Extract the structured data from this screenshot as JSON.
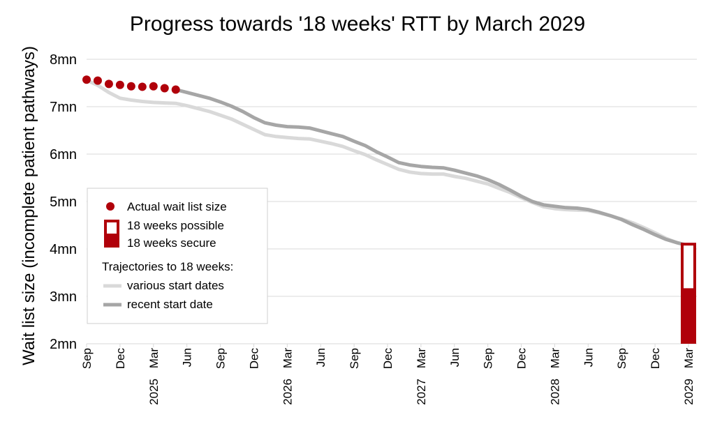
{
  "chart_data": {
    "type": "line",
    "title": "Progress towards '18 weeks' RTT by March 2029",
    "ylabel": "Wait list size (incomplete patient pathways)",
    "xlabel": "",
    "ylim": [
      2,
      8
    ],
    "yticks": [
      "2mn",
      "3mn",
      "4mn",
      "5mn",
      "6mn",
      "7mn",
      "8mn"
    ],
    "xticks": [
      "Sep",
      "Dec",
      "Mar",
      "Jun",
      "Sep",
      "Dec",
      "Mar",
      "Jun",
      "Sep",
      "Dec",
      "Mar",
      "Jun",
      "Sep",
      "Dec",
      "Mar",
      "Jun",
      "Sep",
      "Dec",
      "Mar"
    ],
    "year_labels": [
      "2025",
      "2026",
      "2027",
      "2028",
      "2029"
    ],
    "x_range": [
      "2024-09",
      "2029-03"
    ],
    "grid": true,
    "legend_position": "left-middle",
    "colors": {
      "actual": "#b0000a",
      "various": "#d9d9d9",
      "recent": "#a6a6a6",
      "bar_outline": "#b0000a",
      "bar_fill": "#ffffff"
    },
    "legend": {
      "actual": "Actual wait list size",
      "possible": "18 weeks possible",
      "secure": "18 weeks secure",
      "trajectories_heading": "Trajectories to 18 weeks:",
      "various": "various start dates",
      "recent": "recent start date"
    },
    "series": [
      {
        "name": "Actual wait list size",
        "kind": "points",
        "x": [
          "2024-09",
          "2024-10",
          "2024-11",
          "2024-12",
          "2025-01",
          "2025-02",
          "2025-03",
          "2025-04",
          "2025-05"
        ],
        "y": [
          7.57,
          7.55,
          7.48,
          7.46,
          7.43,
          7.42,
          7.43,
          7.39,
          7.36
        ]
      },
      {
        "name": "various start dates",
        "kind": "line",
        "x": [
          "2024-09",
          "2024-10",
          "2024-11",
          "2024-12",
          "2025-01",
          "2025-02",
          "2025-03",
          "2025-04",
          "2025-05",
          "2025-06",
          "2025-07",
          "2025-08",
          "2025-09",
          "2025-10",
          "2025-11",
          "2025-12",
          "2026-01",
          "2026-02",
          "2026-03",
          "2026-04",
          "2026-05",
          "2026-06",
          "2026-07",
          "2026-08",
          "2026-09",
          "2026-10",
          "2026-11",
          "2026-12",
          "2027-01",
          "2027-02",
          "2027-03",
          "2027-04",
          "2027-05",
          "2027-06",
          "2027-07",
          "2027-08",
          "2027-09",
          "2027-10",
          "2027-11",
          "2027-12",
          "2028-01",
          "2028-02",
          "2028-03",
          "2028-04",
          "2028-05",
          "2028-06",
          "2028-07",
          "2028-08",
          "2028-09",
          "2028-10",
          "2028-11",
          "2028-12",
          "2029-01",
          "2029-02",
          "2029-03"
        ],
        "y": [
          7.56,
          7.45,
          7.3,
          7.18,
          7.14,
          7.11,
          7.09,
          7.08,
          7.07,
          7.02,
          6.96,
          6.9,
          6.82,
          6.74,
          6.63,
          6.52,
          6.41,
          6.37,
          6.35,
          6.33,
          6.32,
          6.27,
          6.22,
          6.16,
          6.07,
          5.99,
          5.88,
          5.78,
          5.68,
          5.62,
          5.59,
          5.58,
          5.58,
          5.53,
          5.49,
          5.43,
          5.37,
          5.28,
          5.19,
          5.08,
          4.98,
          4.89,
          4.85,
          4.83,
          4.82,
          4.81,
          4.76,
          4.7,
          4.63,
          4.55,
          4.45,
          4.34,
          4.22,
          4.13,
          4.07
        ]
      },
      {
        "name": "recent start date",
        "kind": "line",
        "x": [
          "2025-05",
          "2025-06",
          "2025-07",
          "2025-08",
          "2025-09",
          "2025-10",
          "2025-11",
          "2025-12",
          "2026-01",
          "2026-02",
          "2026-03",
          "2026-04",
          "2026-05",
          "2026-06",
          "2026-07",
          "2026-08",
          "2026-09",
          "2026-10",
          "2026-11",
          "2026-12",
          "2027-01",
          "2027-02",
          "2027-03",
          "2027-04",
          "2027-05",
          "2027-06",
          "2027-07",
          "2027-08",
          "2027-09",
          "2027-10",
          "2027-11",
          "2027-12",
          "2028-01",
          "2028-02",
          "2028-03",
          "2028-04",
          "2028-05",
          "2028-06",
          "2028-07",
          "2028-08",
          "2028-09",
          "2028-10",
          "2028-11",
          "2028-12",
          "2029-01",
          "2029-02",
          "2029-03"
        ],
        "y": [
          7.36,
          7.3,
          7.24,
          7.18,
          7.1,
          7.01,
          6.9,
          6.77,
          6.66,
          6.61,
          6.58,
          6.57,
          6.55,
          6.49,
          6.43,
          6.37,
          6.27,
          6.18,
          6.05,
          5.94,
          5.82,
          5.77,
          5.74,
          5.72,
          5.71,
          5.66,
          5.6,
          5.54,
          5.46,
          5.36,
          5.24,
          5.11,
          5.0,
          4.93,
          4.9,
          4.87,
          4.86,
          4.83,
          4.77,
          4.7,
          4.62,
          4.51,
          4.41,
          4.3,
          4.2,
          4.13,
          4.07
        ]
      }
    ],
    "bar": {
      "x": "2029-03",
      "secure_top": 3.17,
      "possible_top": 4.13
    }
  }
}
